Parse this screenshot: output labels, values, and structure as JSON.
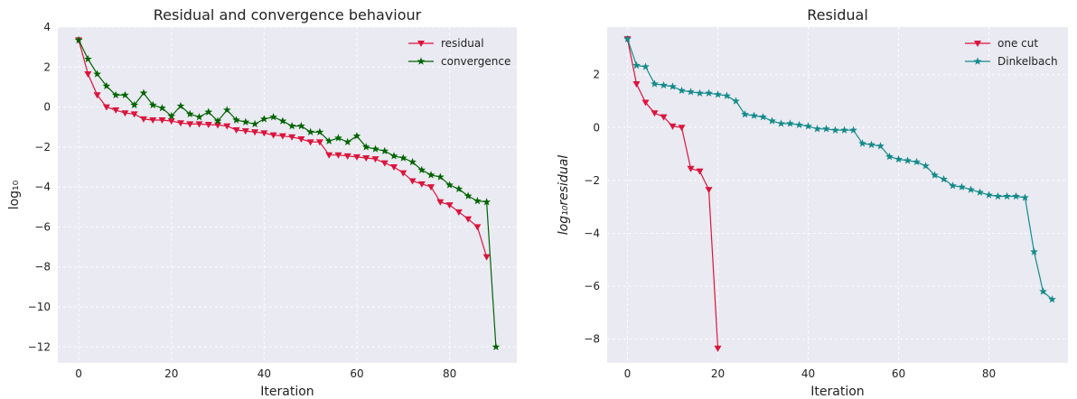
{
  "chart_data": [
    {
      "type": "line",
      "title": "Residual and convergence behaviour",
      "xlabel": "Iteration",
      "ylabel": "log₁₀",
      "xlim": [
        -4.5,
        94.5
      ],
      "ylim": [
        -12.8,
        4.0
      ],
      "xticks": [
        0,
        20,
        40,
        60,
        80
      ],
      "yticks": [
        4,
        2,
        0,
        -2,
        -4,
        -6,
        -8,
        -10,
        -12
      ],
      "grid": true,
      "legend": "top-right",
      "series": [
        {
          "name": "residual",
          "color": "#dc143c",
          "marker": "triangle-down",
          "x": [
            0,
            2,
            4,
            6,
            8,
            10,
            12,
            14,
            16,
            18,
            20,
            22,
            24,
            26,
            28,
            30,
            32,
            34,
            36,
            38,
            40,
            42,
            44,
            46,
            48,
            50,
            52,
            54,
            56,
            58,
            60,
            62,
            64,
            66,
            68,
            70,
            72,
            74,
            76,
            78,
            80,
            82,
            84,
            86,
            88
          ],
          "y": [
            3.35,
            1.65,
            0.6,
            0.0,
            -0.15,
            -0.3,
            -0.35,
            -0.6,
            -0.65,
            -0.65,
            -0.7,
            -0.8,
            -0.85,
            -0.85,
            -0.88,
            -0.9,
            -0.95,
            -1.15,
            -1.2,
            -1.25,
            -1.3,
            -1.4,
            -1.45,
            -1.5,
            -1.6,
            -1.75,
            -1.75,
            -2.4,
            -2.4,
            -2.45,
            -2.5,
            -2.55,
            -2.6,
            -2.8,
            -3.0,
            -3.3,
            -3.7,
            -3.85,
            -4.0,
            -4.75,
            -4.9,
            -5.25,
            -5.6,
            -6.0,
            -7.5
          ]
        },
        {
          "name": "convergence",
          "color": "#006400",
          "marker": "star",
          "x": [
            0,
            2,
            4,
            6,
            8,
            10,
            12,
            14,
            16,
            18,
            20,
            22,
            24,
            26,
            28,
            30,
            32,
            34,
            36,
            38,
            40,
            42,
            44,
            46,
            48,
            50,
            52,
            54,
            56,
            58,
            60,
            62,
            64,
            66,
            68,
            70,
            72,
            74,
            76,
            78,
            80,
            82,
            84,
            86,
            88,
            90
          ],
          "y": [
            3.35,
            2.4,
            1.65,
            1.05,
            0.6,
            0.6,
            0.1,
            0.7,
            0.1,
            -0.05,
            -0.45,
            0.05,
            -0.35,
            -0.5,
            -0.25,
            -0.7,
            -0.15,
            -0.65,
            -0.75,
            -0.85,
            -0.6,
            -0.5,
            -0.7,
            -0.95,
            -0.95,
            -1.25,
            -1.25,
            -1.7,
            -1.55,
            -1.75,
            -1.45,
            -2.0,
            -2.1,
            -2.2,
            -2.45,
            -2.55,
            -2.75,
            -3.15,
            -3.4,
            -3.5,
            -3.9,
            -4.1,
            -4.45,
            -4.7,
            -4.75,
            -12.0
          ]
        }
      ]
    },
    {
      "type": "line",
      "title": "Residual",
      "xlabel": "Iteration",
      "ylabel": "log₁₀residual",
      "xlim": [
        -4.5,
        97.5
      ],
      "ylim": [
        -8.9,
        3.8
      ],
      "xticks": [
        0,
        20,
        40,
        60,
        80
      ],
      "yticks": [
        2,
        0,
        -2,
        -4,
        -6,
        -8
      ],
      "grid": true,
      "legend": "top-right",
      "series": [
        {
          "name": "one cut",
          "color": "#dc143c",
          "marker": "triangle-down",
          "x": [
            0,
            2,
            4,
            6,
            8,
            10,
            12,
            14,
            16,
            18,
            20
          ],
          "y": [
            3.35,
            1.65,
            0.95,
            0.55,
            0.4,
            0.05,
            0.0,
            -1.55,
            -1.65,
            -2.35,
            -8.35
          ]
        },
        {
          "name": "Dinkelbach",
          "color": "#128a8a",
          "marker": "star",
          "x": [
            0,
            2,
            4,
            6,
            8,
            10,
            12,
            14,
            16,
            18,
            20,
            22,
            24,
            26,
            28,
            30,
            32,
            34,
            36,
            38,
            40,
            42,
            44,
            46,
            48,
            50,
            52,
            54,
            56,
            58,
            60,
            62,
            64,
            66,
            68,
            70,
            72,
            74,
            76,
            78,
            80,
            82,
            84,
            86,
            88,
            90,
            92,
            94
          ],
          "y": [
            3.35,
            2.35,
            2.3,
            1.65,
            1.6,
            1.55,
            1.4,
            1.35,
            1.3,
            1.3,
            1.25,
            1.2,
            1.0,
            0.5,
            0.45,
            0.4,
            0.25,
            0.15,
            0.15,
            0.1,
            0.05,
            -0.05,
            -0.05,
            -0.1,
            -0.1,
            -0.1,
            -0.6,
            -0.65,
            -0.7,
            -1.1,
            -1.2,
            -1.25,
            -1.3,
            -1.45,
            -1.8,
            -1.95,
            -2.2,
            -2.25,
            -2.35,
            -2.45,
            -2.55,
            -2.6,
            -2.6,
            -2.6,
            -2.65,
            -4.7,
            -6.2,
            -6.5
          ]
        }
      ]
    }
  ]
}
